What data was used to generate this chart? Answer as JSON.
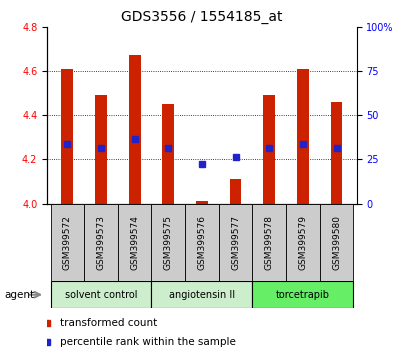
{
  "title": "GDS3556 / 1554185_at",
  "samples": [
    "GSM399572",
    "GSM399573",
    "GSM399574",
    "GSM399575",
    "GSM399576",
    "GSM399577",
    "GSM399578",
    "GSM399579",
    "GSM399580"
  ],
  "bar_tops": [
    4.61,
    4.49,
    4.67,
    4.45,
    4.01,
    4.11,
    4.49,
    4.61,
    4.46
  ],
  "bar_base": 4.0,
  "percentile_values": [
    4.27,
    4.25,
    4.29,
    4.25,
    4.18,
    4.21,
    4.25,
    4.27,
    4.25
  ],
  "bar_color": "#cc2200",
  "blue_color": "#2222cc",
  "ylim_left": [
    4.0,
    4.8
  ],
  "ylim_right": [
    0,
    100
  ],
  "yticks_left": [
    4.0,
    4.2,
    4.4,
    4.6,
    4.8
  ],
  "yticks_right": [
    0,
    25,
    50,
    75,
    100
  ],
  "ytick_labels_right": [
    "0",
    "25",
    "50",
    "75",
    "100%"
  ],
  "groups": [
    {
      "label": "solvent control",
      "start": 0,
      "end": 3,
      "color": "#cceecc"
    },
    {
      "label": "angiotensin II",
      "start": 3,
      "end": 6,
      "color": "#cceecc"
    },
    {
      "label": "torcetrapib",
      "start": 6,
      "end": 9,
      "color": "#66ee66"
    }
  ],
  "legend_items": [
    {
      "label": "transformed count",
      "color": "#cc2200"
    },
    {
      "label": "percentile rank within the sample",
      "color": "#2222cc"
    }
  ],
  "bar_width": 0.35,
  "background_label": "#cccccc",
  "title_fontsize": 10,
  "tick_fontsize": 7,
  "grid_yticks": [
    4.2,
    4.4,
    4.6
  ]
}
